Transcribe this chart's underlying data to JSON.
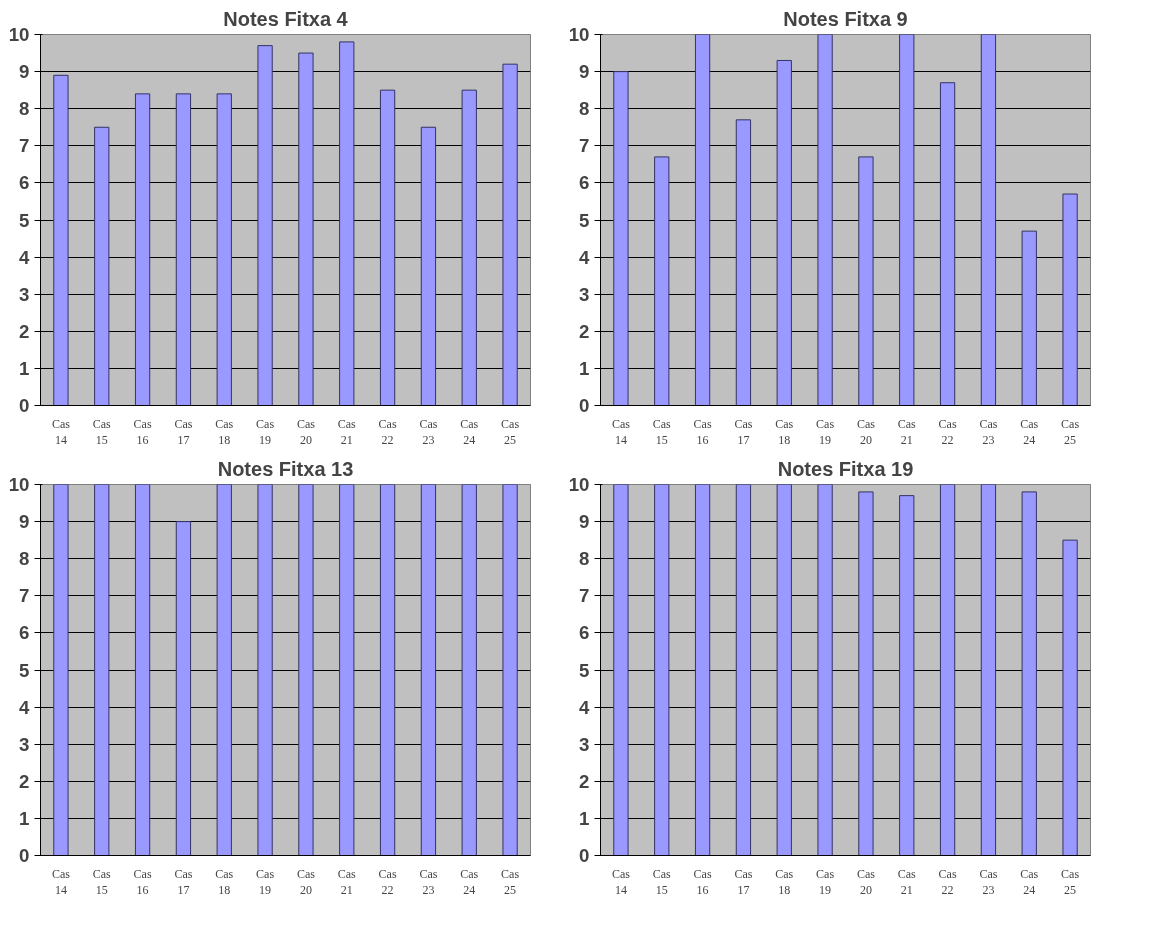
{
  "chart_data": [
    {
      "type": "bar",
      "title": "Notes Fitxa 4",
      "categories": [
        "Cas 14",
        "Cas 15",
        "Cas 16",
        "Cas 17",
        "Cas 18",
        "Cas 19",
        "Cas 20",
        "Cas 21",
        "Cas 22",
        "Cas 23",
        "Cas 24",
        "Cas 25"
      ],
      "values": [
        8.9,
        7.5,
        8.4,
        8.4,
        8.4,
        9.7,
        9.5,
        9.8,
        8.5,
        7.5,
        8.5,
        9.2
      ],
      "color": "#9999ff",
      "ylim": [
        0,
        10
      ],
      "yticks": [
        0,
        1,
        2,
        3,
        4,
        5,
        6,
        7,
        8,
        9,
        10
      ],
      "grid": "y"
    },
    {
      "type": "bar",
      "title": "Notes Fitxa 9",
      "categories": [
        "Cas 14",
        "Cas 15",
        "Cas 16",
        "Cas 17",
        "Cas 18",
        "Cas 19",
        "Cas 20",
        "Cas 21",
        "Cas 22",
        "Cas 23",
        "Cas 24",
        "Cas 25"
      ],
      "values": [
        9.0,
        6.7,
        10,
        7.7,
        9.3,
        10,
        6.7,
        10,
        8.7,
        10,
        4.7,
        5.7
      ],
      "color": "#9999ff",
      "ylim": [
        0,
        10
      ],
      "yticks": [
        0,
        1,
        2,
        3,
        4,
        5,
        6,
        7,
        8,
        9,
        10
      ],
      "grid": "y"
    },
    {
      "type": "bar",
      "title": "Notes Fitxa 13",
      "categories": [
        "Cas 14",
        "Cas 15",
        "Cas 16",
        "Cas 17",
        "Cas 18",
        "Cas 19",
        "Cas 20",
        "Cas 21",
        "Cas 22",
        "Cas 23",
        "Cas 24",
        "Cas 25"
      ],
      "values": [
        10,
        10,
        10,
        9,
        10,
        10,
        10,
        10,
        10,
        10,
        10,
        10
      ],
      "color": "#9999ff",
      "ylim": [
        0,
        10
      ],
      "yticks": [
        0,
        1,
        2,
        3,
        4,
        5,
        6,
        7,
        8,
        9,
        10
      ],
      "grid": "y"
    },
    {
      "type": "bar",
      "title": "Notes Fitxa 19",
      "categories": [
        "Cas 14",
        "Cas 15",
        "Cas 16",
        "Cas 17",
        "Cas 18",
        "Cas 19",
        "Cas 20",
        "Cas 21",
        "Cas 22",
        "Cas 23",
        "Cas 24",
        "Cas 25"
      ],
      "values": [
        10,
        10,
        10,
        10,
        10,
        10,
        9.8,
        9.7,
        10,
        10,
        9.8,
        8.5
      ],
      "color": "#9999ff",
      "ylim": [
        0,
        10
      ],
      "yticks": [
        0,
        1,
        2,
        3,
        4,
        5,
        6,
        7,
        8,
        9,
        10
      ],
      "grid": "y"
    }
  ]
}
